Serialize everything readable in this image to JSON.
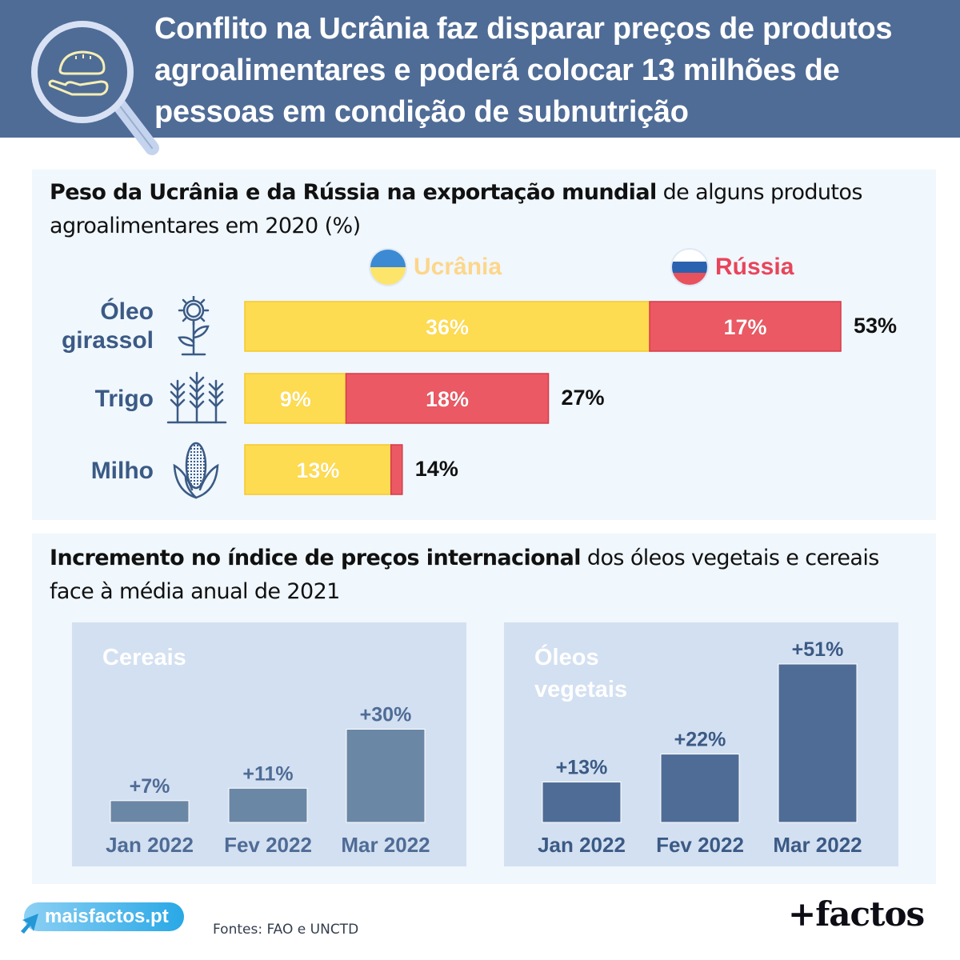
{
  "header": {
    "title": "Conflito na Ucrânia faz disparar preços de produtos agroalimentares e poderá colocar 13 milhões de pessoas em condição de subnutrição",
    "icon": "magnifier-bread-hand-icon"
  },
  "section1": {
    "title_bold": "Peso da Ucrânia e da Rússia na exportação mundial",
    "title_rest": " de alguns produtos agroalimentares em 2020 (%)"
  },
  "section2": {
    "title_bold": "Incremento no índice de preços internacional",
    "title_rest": " dos óleos vegetais e cereais face à média anual de 2021"
  },
  "colors": {
    "header_bg": "#4f6c96",
    "panel_bg": "#f0f7fd",
    "ukraine": "#fedc52",
    "russia": "#eb5a64",
    "cereais_bar": "#6b87a6",
    "oleos_bar": "#4f6c96",
    "label_blue": "#3b5a85"
  },
  "chart_data": [
    {
      "type": "bar",
      "orientation": "horizontal",
      "stacked": true,
      "title": "Peso da Ucrânia e da Rússia na exportação mundial de alguns produtos agroalimentares em 2020 (%)",
      "categories": [
        "Óleo girassol",
        "Trigo",
        "Milho"
      ],
      "category_icons": [
        "sunflower-icon",
        "wheat-icon",
        "corn-icon"
      ],
      "series": [
        {
          "name": "Ucrânia",
          "values": [
            36,
            9,
            13
          ],
          "labels": [
            "36%",
            "9%",
            "13%"
          ]
        },
        {
          "name": "Rússia",
          "values": [
            17,
            18,
            1
          ],
          "labels": [
            "17%",
            "18%",
            ""
          ]
        }
      ],
      "totals": [
        53,
        27,
        14
      ],
      "total_labels": [
        "53%",
        "27%",
        "14%"
      ],
      "legend": [
        "Ucrânia",
        "Rússia"
      ],
      "legend_position": "top",
      "xlim": [
        0,
        53
      ],
      "grid": false
    },
    {
      "type": "bar",
      "title": "Cereais",
      "categories": [
        "Jan 2022",
        "Fev 2022",
        "Mar 2022"
      ],
      "values": [
        7,
        11,
        30
      ],
      "labels": [
        "+7%",
        "+11%",
        "+30%"
      ],
      "ylim": [
        0,
        51
      ],
      "grid": false
    },
    {
      "type": "bar",
      "title": "Óleos vegetais",
      "title_lines": [
        "Óleos",
        "vegetais"
      ],
      "categories": [
        "Jan 2022",
        "Fev 2022",
        "Mar 2022"
      ],
      "values": [
        13,
        22,
        51
      ],
      "labels": [
        "+13%",
        "+22%",
        "+51%"
      ],
      "ylim": [
        0,
        51
      ],
      "grid": false
    }
  ],
  "footer": {
    "site": "maisfactos.pt",
    "sources": "Fontes: FAO e UNCTD",
    "brand": "+factos"
  }
}
